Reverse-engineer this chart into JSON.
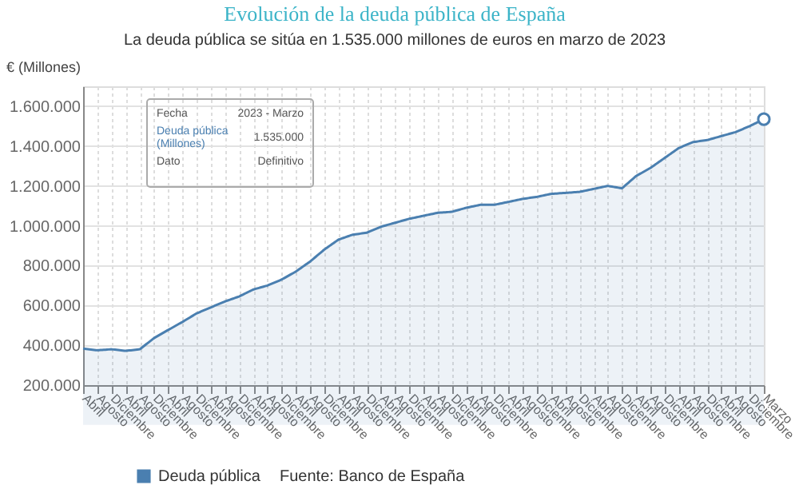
{
  "chart_data": {
    "type": "area",
    "title": "Evolución de la deuda pública de España",
    "subtitle": "La deuda pública se sitúa en 1.535.000 millones de euros en marzo de 2023",
    "ylabel": "€ (Millones)",
    "categories": [
      "Abril",
      "Agosto",
      "Diciembre",
      "Abril",
      "Agosto",
      "Diciembre",
      "Abril",
      "Agosto",
      "Diciembre",
      "Abril",
      "Agosto",
      "Diciembre",
      "Abril",
      "Agosto",
      "Diciembre",
      "Abril",
      "Agosto",
      "Diciembre",
      "Abril",
      "Agosto",
      "Diciembre",
      "Abril",
      "Agosto",
      "Diciembre",
      "Abril",
      "Agosto",
      "Diciembre",
      "Abril",
      "Agosto",
      "Diciembre",
      "Abril",
      "Agosto",
      "Diciembre",
      "Abril",
      "Agosto",
      "Diciembre",
      "Abril",
      "Agosto",
      "Diciembre",
      "Abril",
      "Agosto",
      "Diciembre",
      "Abril",
      "Agosto",
      "Diciembre",
      "Abril",
      "Agosto",
      "Diciembre",
      "Marzo"
    ],
    "series": [
      {
        "name": "Deuda pública",
        "color": "#4a7fb0",
        "values": [
          383000,
          375000,
          380000,
          372000,
          380000,
          436000,
          477000,
          517000,
          560000,
          590000,
          620000,
          645000,
          680000,
          700000,
          730000,
          770000,
          820000,
          880000,
          930000,
          955000,
          965000,
          995000,
          1015000,
          1035000,
          1050000,
          1065000,
          1070000,
          1090000,
          1105000,
          1105000,
          1120000,
          1135000,
          1145000,
          1160000,
          1165000,
          1170000,
          1185000,
          1200000,
          1188000,
          1250000,
          1290000,
          1340000,
          1390000,
          1420000,
          1430000,
          1450000,
          1470000,
          1500000,
          1535000
        ]
      }
    ],
    "ylim": [
      200000,
      1700000
    ],
    "yticks": [
      {
        "value": 200000,
        "label": "200.000"
      },
      {
        "value": 400000,
        "label": "400.000"
      },
      {
        "value": 600000,
        "label": "600.000"
      },
      {
        "value": 800000,
        "label": "800.000"
      },
      {
        "value": 1000000,
        "label": "1.000.000"
      },
      {
        "value": 1200000,
        "label": "1.200.000"
      },
      {
        "value": 1400000,
        "label": "1.400.000"
      },
      {
        "value": 1600000,
        "label": "1.600.000"
      }
    ],
    "annotations": [
      "Fecha",
      "2023 - Marzo",
      "Deuda pública\n(Millones)",
      "1.535.000",
      "Dato",
      "Definitivo",
      "Fuente: Banco de España"
    ],
    "grid": true,
    "legend": "bottom",
    "marker": "none",
    "line_style": "solid"
  }
}
